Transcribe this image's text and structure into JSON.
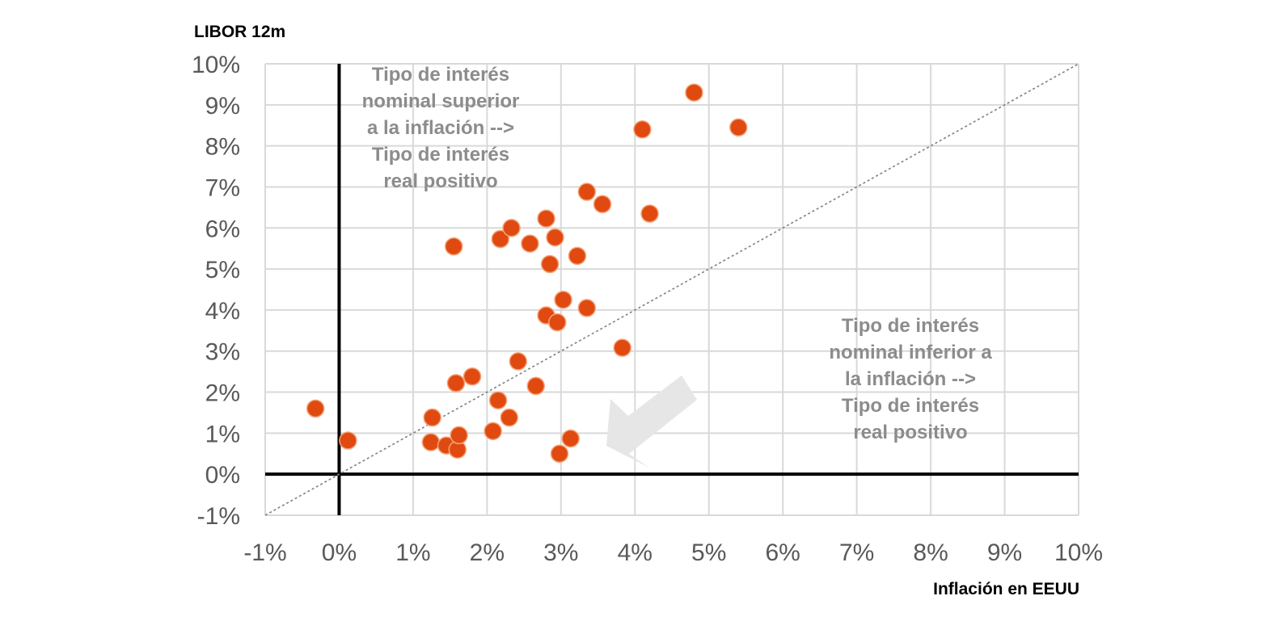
{
  "chart_data": {
    "type": "scatter",
    "title": "",
    "xlabel": "Inflación en EEUU",
    "ylabel": "LIBOR 12m",
    "xlim": [
      -1,
      10
    ],
    "ylim": [
      -1,
      10
    ],
    "x_ticks": [
      "-1%",
      "0%",
      "1%",
      "2%",
      "3%",
      "4%",
      "5%",
      "6%",
      "7%",
      "8%",
      "9%",
      "10%"
    ],
    "y_ticks": [
      "-1%",
      "0%",
      "1%",
      "2%",
      "3%",
      "4%",
      "5%",
      "6%",
      "7%",
      "8%",
      "9%",
      "10%"
    ],
    "grid": true,
    "reference_line": "y = x (dotted)",
    "series": [
      {
        "points": [
          {
            "x": -0.32,
            "y": 1.6
          },
          {
            "x": 0.12,
            "y": 0.82
          },
          {
            "x": 1.26,
            "y": 1.38
          },
          {
            "x": 1.24,
            "y": 0.78
          },
          {
            "x": 1.45,
            "y": 0.7
          },
          {
            "x": 1.6,
            "y": 0.6
          },
          {
            "x": 1.62,
            "y": 0.95
          },
          {
            "x": 1.55,
            "y": 5.55
          },
          {
            "x": 1.58,
            "y": 2.22
          },
          {
            "x": 1.8,
            "y": 2.38
          },
          {
            "x": 2.08,
            "y": 1.05
          },
          {
            "x": 2.15,
            "y": 1.8
          },
          {
            "x": 2.3,
            "y": 1.38
          },
          {
            "x": 2.18,
            "y": 5.73
          },
          {
            "x": 2.33,
            "y": 6.0
          },
          {
            "x": 2.42,
            "y": 2.75
          },
          {
            "x": 2.58,
            "y": 5.62
          },
          {
            "x": 2.66,
            "y": 2.15
          },
          {
            "x": 2.8,
            "y": 6.23
          },
          {
            "x": 2.8,
            "y": 3.87
          },
          {
            "x": 2.85,
            "y": 5.12
          },
          {
            "x": 2.92,
            "y": 5.77
          },
          {
            "x": 2.95,
            "y": 3.7
          },
          {
            "x": 2.98,
            "y": 0.5
          },
          {
            "x": 3.03,
            "y": 4.25
          },
          {
            "x": 3.13,
            "y": 0.87
          },
          {
            "x": 3.22,
            "y": 5.32
          },
          {
            "x": 3.35,
            "y": 4.05
          },
          {
            "x": 3.35,
            "y": 6.88
          },
          {
            "x": 3.56,
            "y": 6.58
          },
          {
            "x": 3.83,
            "y": 3.08
          },
          {
            "x": 4.1,
            "y": 8.4
          },
          {
            "x": 4.2,
            "y": 6.35
          },
          {
            "x": 4.8,
            "y": 9.3
          },
          {
            "x": 5.4,
            "y": 8.45
          }
        ]
      }
    ],
    "annotations": {
      "upper_left": [
        "Tipo de interés",
        "nominal superior",
        "a la inflación -->",
        "Tipo de interés",
        "real positivo"
      ],
      "lower_right": [
        "Tipo de interés",
        "nominal inferior a",
        "la inflación -->",
        "Tipo de interés",
        "real positivo"
      ]
    }
  },
  "colors": {
    "point_fill": "#e04a10",
    "point_stroke": "#f4a37a",
    "grid": "#d9d9d9",
    "axis": "#000000",
    "reference_line": "#808080",
    "annotation_text": "#8c8c8c",
    "arrow": "#e6e6e6"
  },
  "icons": {
    "arrow": "arrow-down-left-icon"
  }
}
